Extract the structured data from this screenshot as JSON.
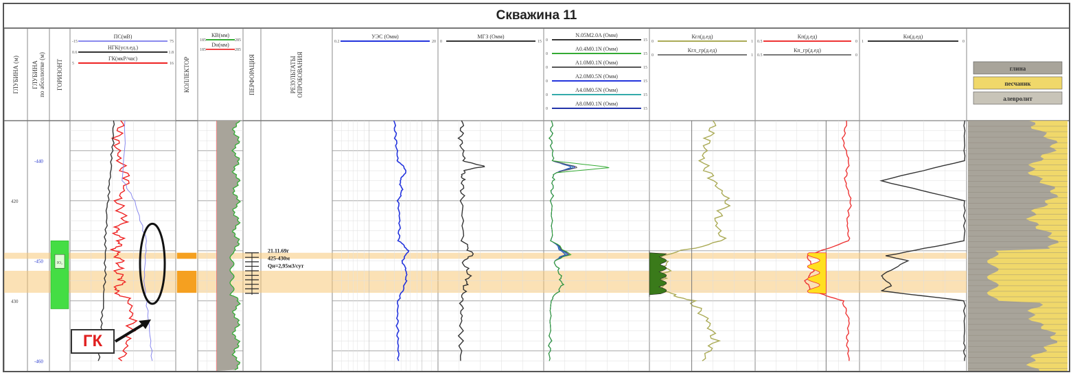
{
  "title": "Скважина 11",
  "columns": {
    "depth": "ГЛУБИНА (м)",
    "abs_depth": "ГЛУБИНА по абсолютке (м)",
    "horizon": "ГОРИЗОНТ",
    "collector": "КОЛЛЕКТОР",
    "perforation": "ПЕРФОРАЦИЯ",
    "results": "РЕЗУЛЬТАТЫ ОПРОБОВАНИЯ"
  },
  "track1": {
    "curves": [
      {
        "name": "ПС(мВ)",
        "min": "-15",
        "max": "75",
        "color": "#8888ee"
      },
      {
        "name": "НГК(усл.ед.)",
        "min": "0.6",
        "max": "1.8",
        "color": "#333333"
      },
      {
        "name": "ГК(мкР/час)",
        "min": "5",
        "max": "16",
        "color": "#ee2222"
      }
    ]
  },
  "track_kv": {
    "curves": [
      {
        "name": "КВ(мм)",
        "min": "185",
        "max": "285",
        "color": "#33aa33"
      },
      {
        "name": "Dн(мм)",
        "min": "185",
        "max": "285",
        "color": "#ee4444"
      }
    ]
  },
  "track_uez": {
    "name": "УЭС (Омм)",
    "min": "0.2",
    "max": "20",
    "color": "#2233dd"
  },
  "track_mgz": {
    "name": "МГЗ (Омм)",
    "min": "0",
    "max": "15",
    "color": "#333333"
  },
  "track_bkz": {
    "curves": [
      {
        "name": "N.05M2.0A (Омм)",
        "min": "0",
        "max": "15",
        "color": "#333333"
      },
      {
        "name": "A0.4M0.1N (Омм)",
        "min": "0",
        "max": "15",
        "color": "#33aa33"
      },
      {
        "name": "A1.0M0.1N (Омм)",
        "min": "0",
        "max": "15",
        "color": "#555555"
      },
      {
        "name": "A2.0M0.5N (Омм)",
        "min": "0",
        "max": "15",
        "color": "#2233dd"
      },
      {
        "name": "A4.0M0.5N (Омм)",
        "min": "0",
        "max": "15",
        "color": "#33aaaa"
      },
      {
        "name": "A8.0M0.1N (Омм)",
        "min": "0",
        "max": "15",
        "color": "#2233aa"
      }
    ]
  },
  "track_kgl": {
    "curves": [
      {
        "name": "Кгл(д.ед)",
        "min": "0",
        "max": "1",
        "color": "#aaaa55"
      },
      {
        "name": "Кгл_гр(д.ед)",
        "min": "0",
        "max": "1",
        "color": "#777777"
      }
    ]
  },
  "track_kp": {
    "curves": [
      {
        "name": "Кп(д.ед)",
        "min": "0.5",
        "max": "0",
        "color": "#ee3333"
      },
      {
        "name": "Кп_гр(д.ед)",
        "min": "0.5",
        "max": "0",
        "color": "#777777"
      }
    ]
  },
  "track_kn": {
    "name": "Кн(д.ед)",
    "min": "1",
    "max": "0",
    "color": "#333333"
  },
  "lithology": {
    "legend": [
      "глина",
      "песчаник",
      "алевролит"
    ],
    "colors": {
      "clay": "#a8a49a",
      "sand": "#f0d86a",
      "silt": "#c8c4b8"
    }
  },
  "depth_labels": [
    "420",
    "430"
  ],
  "abs_depth_labels": [
    "-440",
    "-450",
    "-460"
  ],
  "horizon_label": "Ю₂",
  "result_lines": [
    "21.11.69г",
    "425-430м",
    "Qн=2,95м3/сут"
  ],
  "annotation": "ГК",
  "highlight_color": "#f8c878",
  "chart_data": {
    "type": "line",
    "title": "Скважина 11",
    "xlabel": "",
    "ylabel": "ГЛУБИНА (м)",
    "depth_range": [
      412,
      437
    ],
    "highlighted_intervals": [
      [
        425.2,
        425.8
      ],
      [
        427.0,
        429.2
      ]
    ],
    "series": [
      {
        "name": "ГК(мкР/час)",
        "track": "ГК",
        "depth": [
          412,
          414,
          416,
          418,
          420,
          422,
          423,
          424,
          425,
          426,
          427,
          428,
          429,
          430,
          432,
          434,
          436
        ],
        "values": [
          10.5,
          9.8,
          10.2,
          11.0,
          10.0,
          10.6,
          9.8,
          10.3,
          9.6,
          10.4,
          9.9,
          10.5,
          9.7,
          11.2,
          11.5,
          11.0,
          10.4
        ]
      },
      {
        "name": "НГК(усл.ед.)",
        "track": "НГК",
        "depth": [
          412,
          415,
          418,
          421,
          424,
          427,
          430,
          433,
          436
        ],
        "values": [
          1.1,
          1.08,
          1.05,
          1.02,
          1.0,
          1.0,
          0.98,
          0.95,
          0.92
        ]
      },
      {
        "name": "УЭС (Омм)",
        "track": "УЭС",
        "depth": [
          412,
          414,
          416,
          417,
          418,
          419,
          420,
          422,
          424,
          425,
          426,
          427,
          428,
          430,
          432,
          434,
          436
        ],
        "values": [
          3.0,
          3.2,
          3.5,
          5.0,
          3.8,
          4.2,
          3.5,
          3.8,
          3.6,
          5.5,
          4.2,
          5.0,
          5.0,
          3.5,
          3.4,
          3.5,
          3.6
        ]
      },
      {
        "name": "Кгл(д.ед)",
        "track": "Кгл",
        "depth": [
          412,
          414,
          416,
          418,
          420,
          422,
          424,
          425.5,
          427,
          428,
          429,
          430,
          432,
          434,
          436
        ],
        "values": [
          0.62,
          0.55,
          0.5,
          0.6,
          0.75,
          0.62,
          0.7,
          0.12,
          0.18,
          0.1,
          0.12,
          0.4,
          0.55,
          0.62,
          0.5
        ]
      },
      {
        "name": "Кп(д.ед)",
        "track": "Кп",
        "depth": [
          412,
          414,
          416,
          418,
          420,
          422,
          424,
          425.5,
          427,
          428,
          429,
          430,
          432,
          434,
          436
        ],
        "values": [
          0.06,
          0.08,
          0.05,
          0.07,
          0.04,
          0.06,
          0.05,
          0.25,
          0.22,
          0.26,
          0.23,
          0.08,
          0.05,
          0.06,
          0.05
        ]
      },
      {
        "name": "Кн(д.ед)",
        "track": "Кн",
        "depth": [
          412,
          416,
          418,
          420,
          424,
          425.5,
          426,
          427.5,
          428.5,
          429,
          430,
          434,
          436
        ],
        "values": [
          0.02,
          0.02,
          0.8,
          0.02,
          0.02,
          0.75,
          0.55,
          0.8,
          0.7,
          0.8,
          0.02,
          0.02,
          0.02
        ]
      }
    ]
  }
}
